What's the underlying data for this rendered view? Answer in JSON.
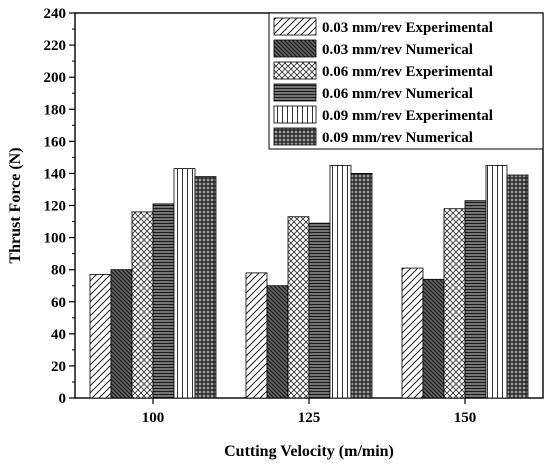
{
  "chart_data": {
    "type": "bar",
    "categories": [
      "100",
      "125",
      "150"
    ],
    "series": [
      {
        "name": "0.03 mm/rev Experimental",
        "values": [
          77,
          78,
          81
        ],
        "pattern": "diag-fwd"
      },
      {
        "name": "0.03 mm/rev Numerical",
        "values": [
          80,
          70,
          74
        ],
        "pattern": "diag-back-dense"
      },
      {
        "name": "0.06 mm/rev Experimental",
        "values": [
          116,
          113,
          118
        ],
        "pattern": "crosshatch"
      },
      {
        "name": "0.06 mm/rev Numerical",
        "values": [
          121,
          109,
          123
        ],
        "pattern": "horizontal-dense"
      },
      {
        "name": "0.09 mm/rev Experimental",
        "values": [
          143,
          145,
          145
        ],
        "pattern": "vertical"
      },
      {
        "name": "0.09 mm/rev Numerical",
        "values": [
          138,
          140,
          139
        ],
        "pattern": "grid"
      }
    ],
    "xlabel": "Cutting Velocity (m/min)",
    "ylabel": "Thrust Force (N)",
    "ylim": [
      0,
      240
    ],
    "yticks": [
      "0",
      "20",
      "40",
      "60",
      "80",
      "100",
      "120",
      "140",
      "160",
      "180",
      "200",
      "220",
      "240"
    ],
    "grid": false,
    "legend_position": "top-right"
  }
}
